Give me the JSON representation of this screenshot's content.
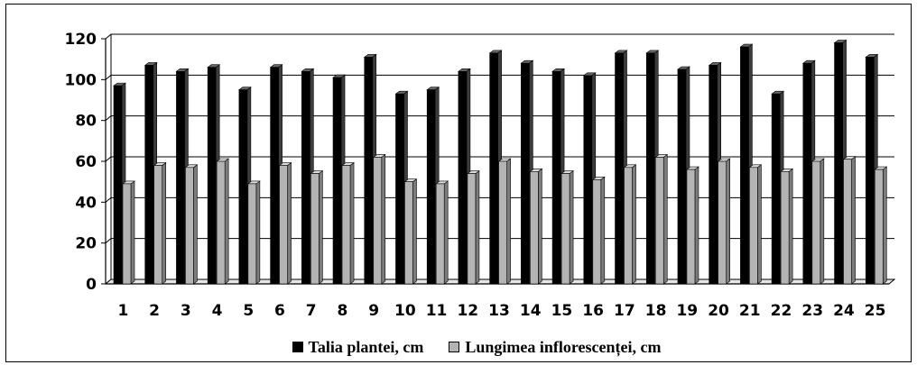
{
  "chart_data": {
    "type": "bar",
    "categories": [
      "1",
      "2",
      "3",
      "4",
      "5",
      "6",
      "7",
      "8",
      "9",
      "10",
      "11",
      "12",
      "13",
      "14",
      "15",
      "16",
      "17",
      "18",
      "19",
      "20",
      "21",
      "22",
      "23",
      "24",
      "25"
    ],
    "ylim": [
      0,
      120
    ],
    "yticks": [
      "0",
      "20",
      "40",
      "60",
      "80",
      "100",
      "120"
    ],
    "grid": true,
    "legend_position": "bottom",
    "series": [
      {
        "name": "Talia plantei, cm",
        "color": "#000000",
        "values": [
          97,
          107,
          104,
          106,
          95,
          106,
          104,
          101,
          111,
          93,
          95,
          104,
          113,
          108,
          104,
          102,
          113,
          113,
          105,
          107,
          116,
          93,
          108,
          118,
          111
        ]
      },
      {
        "name": "Lungimea inflorescenței, cm",
        "color": "#b4b4b4",
        "values": [
          49,
          58,
          57,
          60,
          49,
          58,
          54,
          58,
          62,
          50,
          49,
          54,
          60,
          55,
          54,
          51,
          57,
          62,
          56,
          60,
          57,
          55,
          60,
          61,
          56
        ]
      }
    ]
  }
}
